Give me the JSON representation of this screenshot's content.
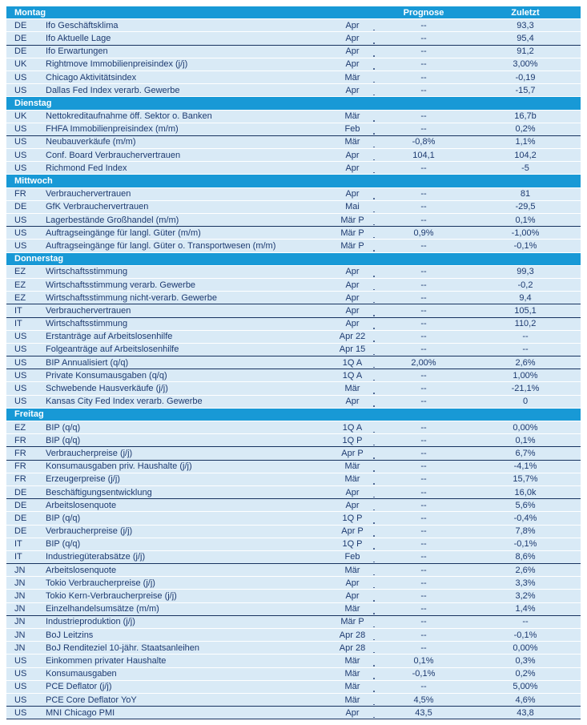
{
  "columns": {
    "prognose": "Prognose",
    "zuletzt": "Zuletzt"
  },
  "colors": {
    "header_bar": "#1899d6",
    "row_background": "#d9eaf6",
    "text_navy": "#1d3a70",
    "rule_line": "#17325f",
    "row_separator": "#ffffff"
  },
  "sections": [
    {
      "day": "Montag",
      "rows": [
        {
          "country": "DE",
          "name": "Ifo Geschäftsklima",
          "period": "Apr",
          "prognose": "--",
          "zuletzt": "93,3",
          "rule_below": false
        },
        {
          "country": "DE",
          "name": "Ifo Aktuelle Lage",
          "period": "Apr",
          "prognose": "--",
          "zuletzt": "95,4",
          "rule_below": true
        },
        {
          "country": "DE",
          "name": "Ifo Erwartungen",
          "period": "Apr",
          "prognose": "--",
          "zuletzt": "91,2",
          "rule_below": false
        },
        {
          "country": "UK",
          "name": "Rightmove Immobilienpreisindex (j/j)",
          "period": "Apr",
          "prognose": "--",
          "zuletzt": "3,00%",
          "rule_below": false
        },
        {
          "country": "US",
          "name": "Chicago Aktivitätsindex",
          "period": "Mär",
          "prognose": "--",
          "zuletzt": "-0,19",
          "rule_below": false
        },
        {
          "country": "US",
          "name": "Dallas Fed Index verarb. Gewerbe",
          "period": "Apr",
          "prognose": "--",
          "zuletzt": "-15,7",
          "rule_below": false
        }
      ]
    },
    {
      "day": "Dienstag",
      "rows": [
        {
          "country": "UK",
          "name": "Nettokreditaufnahme öff. Sektor o. Banken",
          "period": "Mär",
          "prognose": "--",
          "zuletzt": "16,7b",
          "rule_below": false
        },
        {
          "country": "US",
          "name": "FHFA Immobilienpreisindex (m/m)",
          "period": "Feb",
          "prognose": "--",
          "zuletzt": "0,2%",
          "rule_below": true
        },
        {
          "country": "US",
          "name": "Neubauverkäufe (m/m)",
          "period": "Mär",
          "prognose": "-0,8%",
          "zuletzt": "1,1%",
          "rule_below": false
        },
        {
          "country": "US",
          "name": "Conf. Board Verbrauchervertrauen",
          "period": "Apr",
          "prognose": "104,1",
          "zuletzt": "104,2",
          "rule_below": false
        },
        {
          "country": "US",
          "name": "Richmond Fed Index",
          "period": "Apr",
          "prognose": "--",
          "zuletzt": "-5",
          "rule_below": false
        }
      ]
    },
    {
      "day": "Mittwoch",
      "rows": [
        {
          "country": "FR",
          "name": "Verbrauchervertrauen",
          "period": "Apr",
          "prognose": "--",
          "zuletzt": "81",
          "rule_below": false
        },
        {
          "country": "DE",
          "name": "GfK Verbrauchervertrauen",
          "period": "Mai",
          "prognose": "--",
          "zuletzt": "-29,5",
          "rule_below": false
        },
        {
          "country": "US",
          "name": "Lagerbestände Großhandel (m/m)",
          "period": "Mär P",
          "prognose": "--",
          "zuletzt": "0,1%",
          "rule_below": true
        },
        {
          "country": "US",
          "name": "Auftragseingänge für langl. Güter (m/m)",
          "period": "Mär P",
          "prognose": "0,9%",
          "zuletzt": "-1,00%",
          "rule_below": false
        },
        {
          "country": "US",
          "name": "Auftragseingänge für langl. Güter o. Transportwesen (m/m)",
          "period": "Mär P",
          "prognose": "--",
          "zuletzt": "-0,1%",
          "rule_below": false
        }
      ]
    },
    {
      "day": "Donnerstag",
      "rows": [
        {
          "country": "EZ",
          "name": "Wirtschaftsstimmung",
          "period": "Apr",
          "prognose": "--",
          "zuletzt": "99,3",
          "rule_below": false
        },
        {
          "country": "EZ",
          "name": "Wirtschaftsstimmung verarb. Gewerbe",
          "period": "Apr",
          "prognose": "--",
          "zuletzt": "-0,2",
          "rule_below": false
        },
        {
          "country": "EZ",
          "name": "Wirtschaftsstimmung nicht-verarb. Gewerbe",
          "period": "Apr",
          "prognose": "--",
          "zuletzt": "9,4",
          "rule_below": true
        },
        {
          "country": "IT",
          "name": "Verbrauchervertrauen",
          "period": "Apr",
          "prognose": "--",
          "zuletzt": "105,1",
          "rule_below": true
        },
        {
          "country": "IT",
          "name": "Wirtschaftsstimmung",
          "period": "Apr",
          "prognose": "--",
          "zuletzt": "110,2",
          "rule_below": false
        },
        {
          "country": "US",
          "name": "Erstanträge auf Arbeitslosenhilfe",
          "period": "Apr 22",
          "prognose": "--",
          "zuletzt": "--",
          "rule_below": false
        },
        {
          "country": "US",
          "name": "Folgeanträge auf Arbeitslosenhilfe",
          "period": "Apr 15",
          "prognose": "--",
          "zuletzt": "--",
          "rule_below": true
        },
        {
          "country": "US",
          "name": "BIP Annualisiert (q/q)",
          "period": "1Q A",
          "prognose": "2,00%",
          "zuletzt": "2,6%",
          "rule_below": true
        },
        {
          "country": "US",
          "name": "Private Konsumausgaben (q/q)",
          "period": "1Q A",
          "prognose": "--",
          "zuletzt": "1,00%",
          "rule_below": false
        },
        {
          "country": "US",
          "name": "Schwebende Hausverkäufe (j/j)",
          "period": "Mär",
          "prognose": "--",
          "zuletzt": "-21,1%",
          "rule_below": false
        },
        {
          "country": "US",
          "name": "Kansas City Fed Index verarb. Gewerbe",
          "period": "Apr",
          "prognose": "--",
          "zuletzt": "0",
          "rule_below": false
        }
      ]
    },
    {
      "day": "Freitag",
      "rows": [
        {
          "country": "EZ",
          "name": "BIP (q/q)",
          "period": "1Q A",
          "prognose": "--",
          "zuletzt": "0,00%",
          "rule_below": false
        },
        {
          "country": "FR",
          "name": "BIP (q/q)",
          "period": "1Q P",
          "prognose": "--",
          "zuletzt": "0,1%",
          "rule_below": true
        },
        {
          "country": "FR",
          "name": "Verbraucherpreise (j/j)",
          "period": "Apr P",
          "prognose": "--",
          "zuletzt": "6,7%",
          "rule_below": true
        },
        {
          "country": "FR",
          "name": "Konsumausgaben priv. Haushalte (j/j)",
          "period": "Mär",
          "prognose": "--",
          "zuletzt": "-4,1%",
          "rule_below": false
        },
        {
          "country": "FR",
          "name": "Erzeugerpreise (j/j)",
          "period": "Mär",
          "prognose": "--",
          "zuletzt": "15,7%",
          "rule_below": false
        },
        {
          "country": "DE",
          "name": "Beschäftigungsentwicklung",
          "period": "Apr",
          "prognose": "--",
          "zuletzt": "16,0k",
          "rule_below": true
        },
        {
          "country": "DE",
          "name": "Arbeitslosenquote",
          "period": "Apr",
          "prognose": "--",
          "zuletzt": "5,6%",
          "rule_below": false
        },
        {
          "country": "DE",
          "name": "BIP (q/q)",
          "period": "1Q P",
          "prognose": "--",
          "zuletzt": "-0,4%",
          "rule_below": false
        },
        {
          "country": "DE",
          "name": "Verbraucherpreise (j/j)",
          "period": "Apr P",
          "prognose": "--",
          "zuletzt": "7,8%",
          "rule_below": false
        },
        {
          "country": "IT",
          "name": "BIP (q/q)",
          "period": "1Q P",
          "prognose": "--",
          "zuletzt": "-0,1%",
          "rule_below": false
        },
        {
          "country": "IT",
          "name": "Industriegüterabsätze (j/j)",
          "period": "Feb",
          "prognose": "--",
          "zuletzt": "8,6%",
          "rule_below": true
        },
        {
          "country": "JN",
          "name": "Arbeitslosenquote",
          "period": "Mär",
          "prognose": "--",
          "zuletzt": "2,6%",
          "rule_below": false
        },
        {
          "country": "JN",
          "name": "Tokio Verbraucherpreise (j/j)",
          "period": "Apr",
          "prognose": "--",
          "zuletzt": "3,3%",
          "rule_below": false
        },
        {
          "country": "JN",
          "name": "Tokio Kern-Verbraucherpreise (j/j)",
          "period": "Apr",
          "prognose": "--",
          "zuletzt": "3,2%",
          "rule_below": false
        },
        {
          "country": "JN",
          "name": "Einzelhandelsumsätze (m/m)",
          "period": "Mär",
          "prognose": "--",
          "zuletzt": "1,4%",
          "rule_below": true
        },
        {
          "country": "JN",
          "name": "Industrieproduktion (j/j)",
          "period": "Mär P",
          "prognose": "--",
          "zuletzt": "--",
          "rule_below": false
        },
        {
          "country": "JN",
          "name": "BoJ Leitzins",
          "period": "Apr 28",
          "prognose": "--",
          "zuletzt": "-0,1%",
          "rule_below": false
        },
        {
          "country": "JN",
          "name": "BoJ Renditeziel 10-jähr. Staatsanleihen",
          "period": "Apr 28",
          "prognose": "--",
          "zuletzt": "0,00%",
          "rule_below": false
        },
        {
          "country": "US",
          "name": "Einkommen privater Haushalte",
          "period": "Mär",
          "prognose": "0,1%",
          "zuletzt": "0,3%",
          "rule_below": false
        },
        {
          "country": "US",
          "name": "Konsumausgaben",
          "period": "Mär",
          "prognose": "-0,1%",
          "zuletzt": "0,2%",
          "rule_below": false
        },
        {
          "country": "US",
          "name": "PCE Deflator (j/j)",
          "period": "Mär",
          "prognose": "--",
          "zuletzt": "5,00%",
          "rule_below": false
        },
        {
          "country": "US",
          "name": "PCE Core Deflator YoY",
          "period": "Mär",
          "prognose": "4,5%",
          "zuletzt": "4,6%",
          "rule_below": true
        },
        {
          "country": "US",
          "name": "MNI Chicago PMI",
          "period": "Apr",
          "prognose": "43,5",
          "zuletzt": "43,8",
          "rule_below": true
        }
      ]
    }
  ]
}
